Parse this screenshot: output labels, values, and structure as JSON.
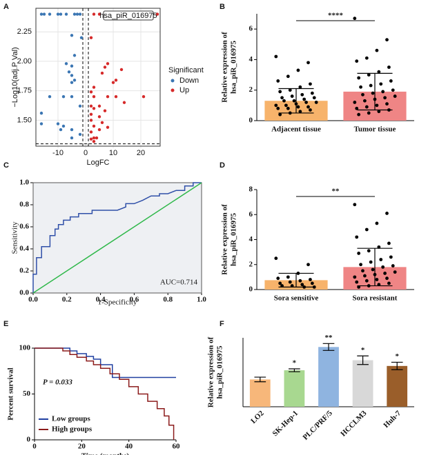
{
  "chart_data": [
    {
      "panel": "A",
      "type": "scatter",
      "xlabel": "LogFC",
      "ylabel": "−Log10(adj.P Val)",
      "xlim": [
        -18,
        27
      ],
      "xticks": [
        -10,
        0,
        10,
        20
      ],
      "ylim": [
        1.28,
        2.45
      ],
      "yticks": [
        {
          "value": 1.5,
          "label": "1.50"
        },
        {
          "value": 1.75,
          "label": "1.75"
        },
        {
          "value": 2.0,
          "label": "2.00"
        },
        {
          "value": 2.25,
          "label": "2.25"
        }
      ],
      "vlines": [
        -1,
        1
      ],
      "hline": 1.3,
      "grid": true,
      "annotation": "hsa_piR_016975",
      "legend_title": "Significant",
      "series": [
        {
          "name": "Down",
          "color": "#3b76b3",
          "x": [
            -16,
            -15,
            -13,
            -10,
            -9,
            -7,
            -4,
            -3,
            -2,
            -5,
            -1.5,
            -4,
            -7,
            -5,
            -6,
            -5,
            -4,
            -5,
            -13,
            -8,
            -5,
            -2,
            -16,
            -16,
            -10,
            -8,
            -9,
            -5,
            -2,
            -5
          ],
          "y": [
            2.4,
            2.4,
            2.4,
            2.4,
            2.4,
            2.4,
            2.4,
            2.4,
            2.4,
            2.22,
            2.2,
            2.05,
            1.98,
            1.96,
            1.91,
            1.88,
            1.84,
            1.82,
            1.7,
            1.7,
            1.7,
            1.62,
            1.56,
            1.47,
            1.47,
            1.45,
            1.42,
            1.42,
            1.38,
            1.35
          ]
        },
        {
          "name": "Up",
          "color": "#d62a2a",
          "x": [
            3,
            5,
            7,
            8,
            26,
            2,
            8,
            7,
            13,
            6,
            11,
            10,
            3,
            2,
            3,
            8,
            11,
            21,
            14,
            2,
            5,
            3,
            7,
            2,
            5,
            2,
            6,
            3,
            8,
            5,
            2,
            3,
            4,
            2,
            3
          ],
          "y": [
            2.4,
            2.4,
            2.4,
            2.4,
            2.4,
            2.2,
            1.98,
            1.95,
            1.93,
            1.9,
            1.84,
            1.82,
            1.78,
            1.74,
            1.7,
            1.7,
            1.7,
            1.7,
            1.65,
            1.62,
            1.62,
            1.6,
            1.58,
            1.55,
            1.53,
            1.5,
            1.48,
            1.45,
            1.44,
            1.42,
            1.4,
            1.35,
            1.35,
            1.34,
            1.32
          ]
        }
      ]
    },
    {
      "panel": "B",
      "type": "bar",
      "ylabel": [
        "Relative expression of",
        "hsa_piR_016975"
      ],
      "categories": [
        "Adjacent tissue",
        "Tumor tissue"
      ],
      "values": [
        1.3,
        1.9
      ],
      "errors": [
        0.8,
        1.2
      ],
      "colors": [
        "#f7b36b",
        "#ef8585"
      ],
      "significance": "****",
      "ylim": [
        0,
        7
      ],
      "yticks": [
        0,
        2,
        4,
        6
      ],
      "points": [
        [
          4.2,
          3.8,
          3.3,
          2.9,
          2.6,
          2.4,
          2.2,
          2.0,
          1.9,
          1.8,
          1.7,
          1.6,
          1.5,
          1.5,
          1.4,
          1.3,
          1.3,
          1.2,
          1.2,
          1.1,
          1.0,
          1.0,
          0.9,
          0.9,
          0.8,
          0.8,
          0.7,
          0.6,
          0.5,
          0.4
        ],
        [
          6.7,
          5.3,
          4.6,
          4.1,
          3.9,
          3.5,
          3.2,
          3.0,
          2.8,
          2.6,
          2.4,
          2.3,
          2.2,
          2.0,
          1.9,
          1.8,
          1.7,
          1.6,
          1.5,
          1.4,
          1.3,
          1.2,
          1.1,
          1.0,
          0.9,
          0.8,
          0.7,
          0.6,
          0.5,
          0.4
        ]
      ]
    },
    {
      "panel": "C",
      "type": "line",
      "xlabel": "1-Specificity",
      "ylabel": "Sensitivity",
      "annotation": "AUC=0.714",
      "xlim": [
        0,
        1
      ],
      "xticks": [
        {
          "value": 0,
          "label": "0.0"
        },
        {
          "value": 0.2,
          "label": "0.2"
        },
        {
          "value": 0.4,
          "label": "0.4"
        },
        {
          "value": 0.6,
          "label": "0.6"
        },
        {
          "value": 0.8,
          "label": "0.8"
        },
        {
          "value": 1,
          "label": "1.0"
        }
      ],
      "ylim": [
        0,
        1
      ],
      "yticks": [
        {
          "value": 0,
          "label": "0.0"
        },
        {
          "value": 0.2,
          "label": "0.2"
        },
        {
          "value": 0.4,
          "label": "0.4"
        },
        {
          "value": 0.6,
          "label": "0.6"
        },
        {
          "value": 0.8,
          "label": "0.8"
        },
        {
          "value": 1,
          "label": "1.0"
        }
      ],
      "series": [
        {
          "color": "#2f4fa8",
          "x": [
            0,
            0,
            0.02,
            0.02,
            0.05,
            0.05,
            0.1,
            0.1,
            0.13,
            0.13,
            0.15,
            0.15,
            0.18,
            0.18,
            0.22,
            0.22,
            0.27,
            0.27,
            0.35,
            0.35,
            0.5,
            0.55,
            0.55,
            0.6,
            0.65,
            0.7,
            0.75,
            0.75,
            0.8,
            0.85,
            0.9,
            0.9,
            0.95,
            0.95,
            1.0
          ],
          "y": [
            0,
            0.17,
            0.17,
            0.32,
            0.32,
            0.42,
            0.42,
            0.52,
            0.52,
            0.58,
            0.58,
            0.62,
            0.62,
            0.66,
            0.66,
            0.69,
            0.69,
            0.72,
            0.72,
            0.75,
            0.75,
            0.78,
            0.81,
            0.81,
            0.84,
            0.88,
            0.88,
            0.9,
            0.9,
            0.93,
            0.93,
            0.97,
            0.97,
            1.0,
            1.0
          ]
        },
        {
          "color": "#2fb84a",
          "x": [
            0,
            1
          ],
          "y": [
            0,
            1
          ]
        }
      ]
    },
    {
      "panel": "D",
      "type": "bar",
      "ylabel": [
        "Relative expression of",
        "hsa_piR_016975"
      ],
      "categories": [
        "Sora sensitive",
        "Sora resistant"
      ],
      "values": [
        0.75,
        1.8
      ],
      "errors": [
        0.55,
        1.5
      ],
      "colors": [
        "#f7b36b",
        "#ef8585"
      ],
      "significance": "**",
      "ylim": [
        0,
        8
      ],
      "yticks": [
        0,
        2,
        4,
        6,
        8
      ],
      "points": [
        [
          2.5,
          2.0,
          1.3,
          1.0,
          0.9,
          0.8,
          0.7,
          0.6,
          0.5,
          0.5,
          0.4,
          0.3,
          0.3,
          0.2,
          0.2
        ],
        [
          6.8,
          6.1,
          5.3,
          4.8,
          4.2,
          3.7,
          3.4,
          3.1,
          2.9,
          2.6,
          2.4,
          2.2,
          2.0,
          1.9,
          1.8,
          1.6,
          1.5,
          1.4,
          1.3,
          1.2,
          1.1,
          1.0,
          0.9,
          0.8,
          0.7,
          0.6,
          0.5,
          0.4,
          0.3,
          0.2
        ]
      ]
    },
    {
      "panel": "E",
      "type": "line",
      "xlabel": "Time (months)",
      "ylabel": "Percent survival",
      "annotation": "P = 0.033",
      "xlim": [
        0,
        60
      ],
      "xticks": [
        0,
        20,
        40,
        60
      ],
      "ylim": [
        0,
        100
      ],
      "yticks": [
        0,
        50,
        100
      ],
      "legend": "lower left",
      "series": [
        {
          "name": "Low groups",
          "color": "#1f3fa0",
          "x": [
            0,
            15,
            15,
            18,
            18,
            22,
            22,
            25,
            25,
            28,
            28,
            33,
            33,
            60
          ],
          "y": [
            100,
            100,
            97,
            97,
            94,
            94,
            91,
            91,
            88,
            88,
            82,
            82,
            68,
            68
          ]
        },
        {
          "name": "High groups",
          "color": "#8b1a1a",
          "x": [
            0,
            12,
            12,
            15,
            15,
            18,
            18,
            22,
            22,
            25,
            25,
            28,
            28,
            32,
            32,
            36,
            36,
            40,
            40,
            44,
            44,
            48,
            48,
            52,
            52,
            55,
            55,
            57,
            57,
            59,
            59
          ],
          "y": [
            100,
            100,
            97,
            97,
            93,
            93,
            90,
            90,
            86,
            86,
            82,
            82,
            78,
            78,
            72,
            72,
            66,
            66,
            58,
            58,
            50,
            50,
            42,
            42,
            34,
            34,
            26,
            26,
            16,
            16,
            0
          ]
        }
      ]
    },
    {
      "panel": "F",
      "type": "bar",
      "ylabel": [
        "Relative expression of",
        "hsa_piR_016975"
      ],
      "categories": [
        "LO2",
        "SK-Hep-1",
        "PLC/PRF/5",
        "HCCLM3",
        "Huh-7"
      ],
      "values": [
        0.95,
        1.27,
        2.08,
        1.62,
        1.42
      ],
      "errors": [
        0.08,
        0.05,
        0.12,
        0.15,
        0.13
      ],
      "colors": [
        "#f7b77a",
        "#a8d890",
        "#8fb4e0",
        "#d8d8d8",
        "#9a5e2a"
      ],
      "significance": [
        null,
        "*",
        "**",
        "*",
        "*"
      ],
      "ylim": [
        0,
        2.4
      ]
    }
  ]
}
